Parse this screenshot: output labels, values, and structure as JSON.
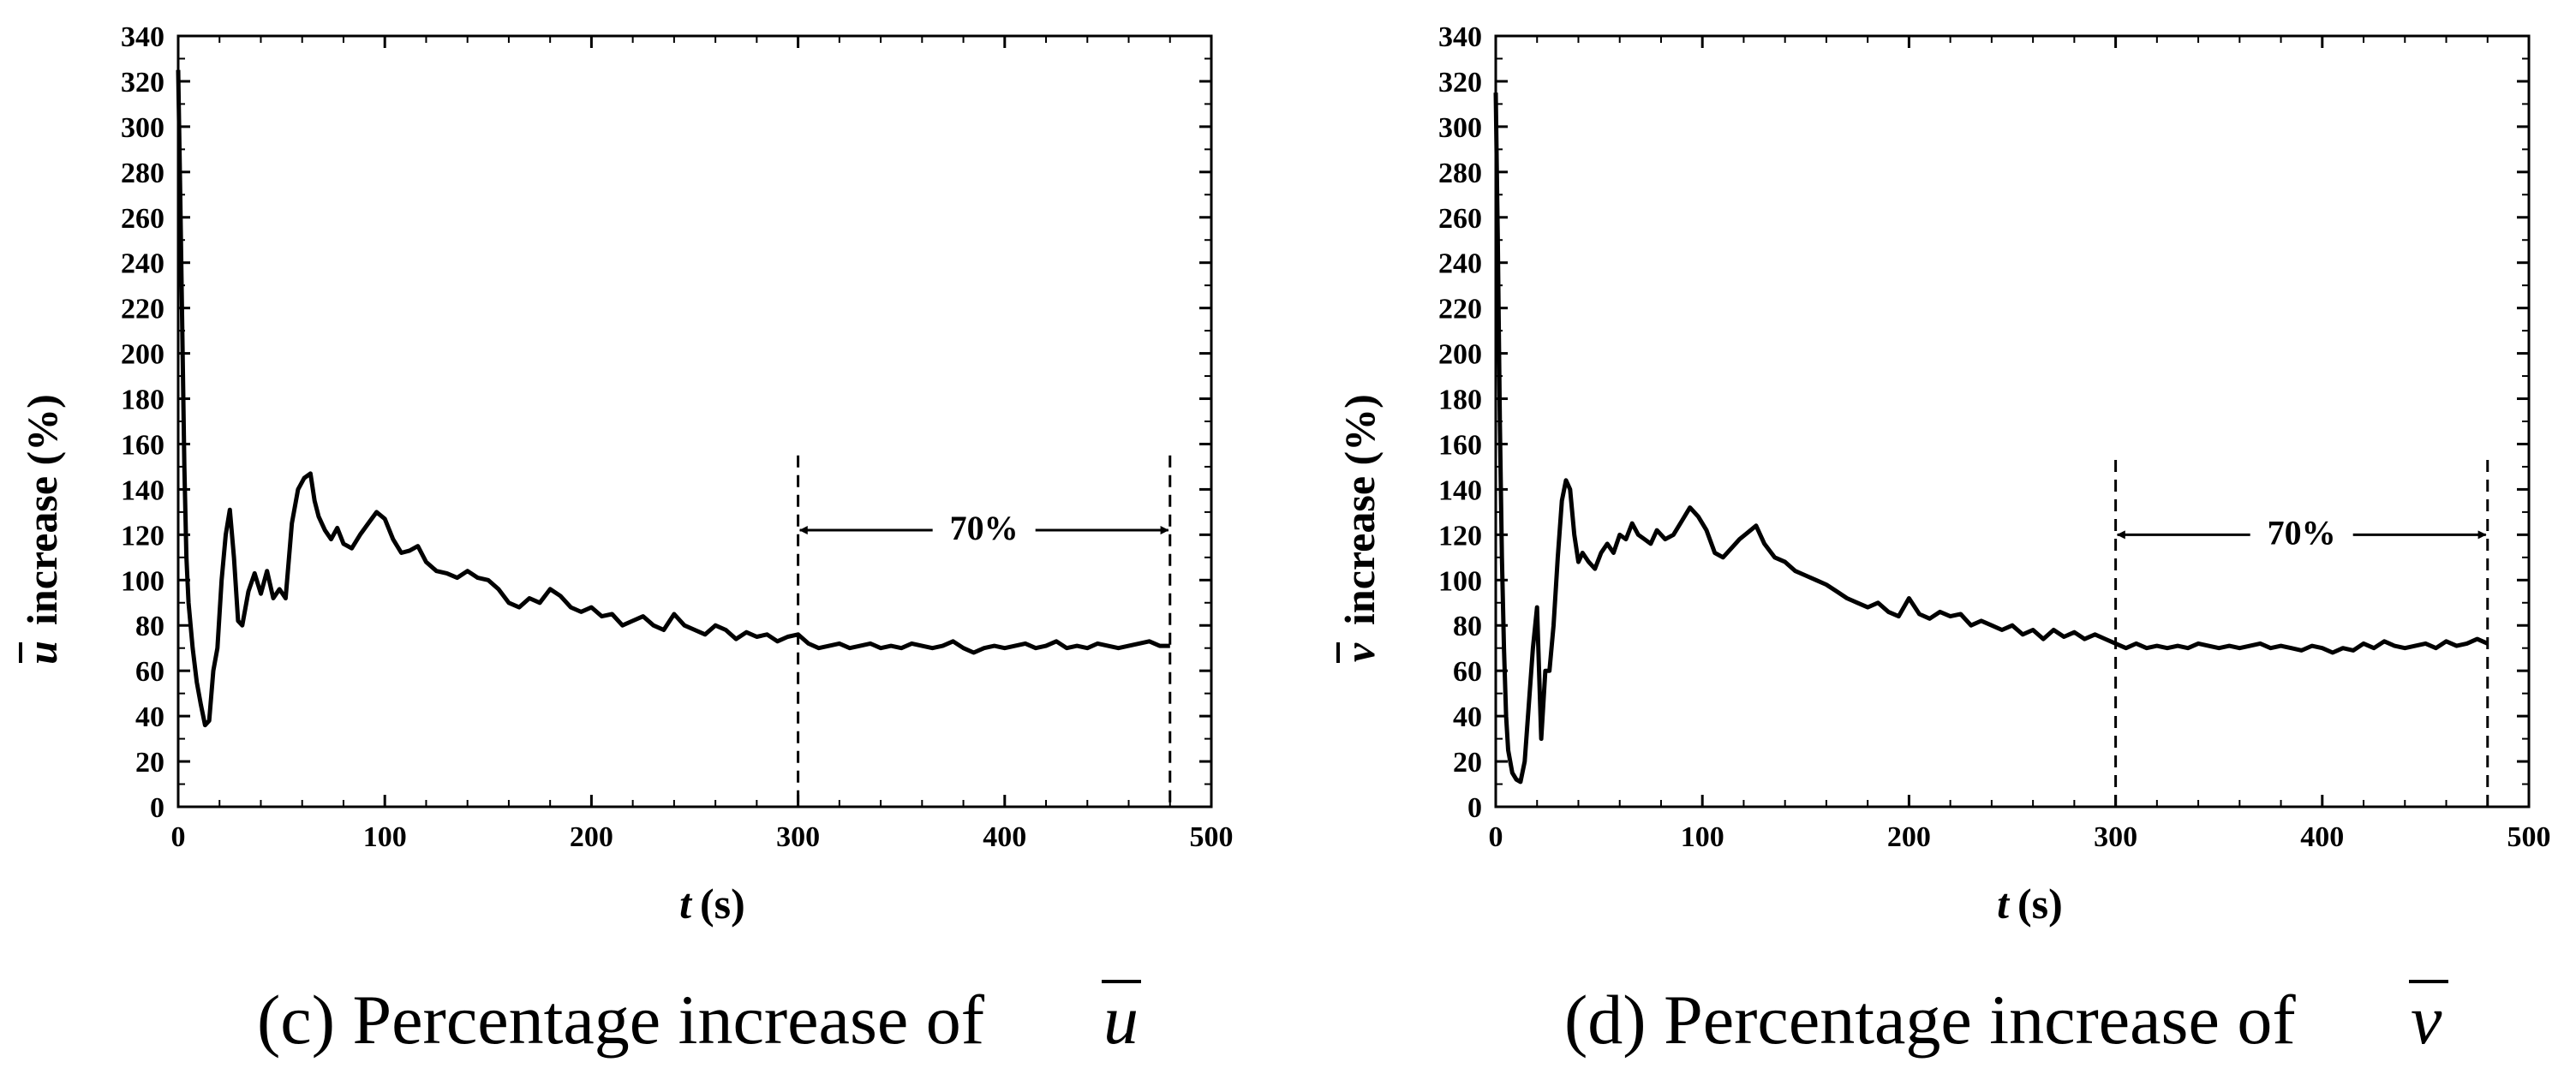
{
  "chart_data": [
    {
      "type": "line",
      "panel": "c",
      "caption_prefix": "(c) Percentage increase of",
      "caption_symbol": "u",
      "symbol": "u",
      "ylabel_rest": "increase (%)",
      "xlabel_var": "t",
      "xlabel_unit": "(s)",
      "xlim": [
        0,
        500
      ],
      "ylim": [
        0,
        340
      ],
      "xticks": [
        0,
        100,
        200,
        300,
        400,
        500
      ],
      "yticks": [
        0,
        20,
        40,
        60,
        80,
        100,
        120,
        140,
        160,
        180,
        200,
        220,
        240,
        260,
        280,
        300,
        320,
        340
      ],
      "grid": false,
      "markers": {
        "x": [
          300,
          480
        ],
        "y_top": 155
      },
      "annotation": {
        "text": "70%",
        "y": 122
      },
      "series": [
        {
          "name": "u increase",
          "x": [
            0,
            1,
            2,
            3,
            4,
            5,
            7,
            9,
            11,
            13,
            15,
            17,
            19,
            21,
            23,
            25,
            27,
            29,
            31,
            34,
            37,
            40,
            43,
            46,
            49,
            52,
            55,
            58,
            61,
            64,
            66,
            68,
            71,
            74,
            77,
            80,
            84,
            88,
            92,
            96,
            100,
            104,
            108,
            112,
            116,
            120,
            125,
            130,
            135,
            140,
            145,
            150,
            155,
            160,
            165,
            170,
            175,
            180,
            185,
            190,
            195,
            200,
            205,
            210,
            215,
            220,
            225,
            230,
            235,
            240,
            245,
            250,
            255,
            260,
            265,
            270,
            275,
            280,
            285,
            290,
            295,
            300,
            305,
            310,
            315,
            320,
            325,
            330,
            335,
            340,
            345,
            350,
            355,
            360,
            365,
            370,
            375,
            380,
            385,
            390,
            395,
            400,
            405,
            410,
            415,
            420,
            425,
            430,
            435,
            440,
            445,
            450,
            455,
            460,
            465,
            470,
            475,
            480
          ],
          "y": [
            325,
            270,
            210,
            150,
            110,
            90,
            70,
            55,
            45,
            36,
            38,
            60,
            70,
            100,
            120,
            131,
            110,
            82,
            80,
            95,
            103,
            94,
            104,
            92,
            96,
            92,
            125,
            140,
            145,
            147,
            135,
            128,
            122,
            118,
            123,
            116,
            114,
            120,
            125,
            130,
            127,
            118,
            112,
            113,
            115,
            108,
            104,
            103,
            101,
            104,
            101,
            100,
            96,
            90,
            88,
            92,
            90,
            96,
            93,
            88,
            86,
            88,
            84,
            85,
            80,
            82,
            84,
            80,
            78,
            85,
            80,
            78,
            76,
            80,
            78,
            74,
            77,
            75,
            76,
            73,
            75,
            76,
            72,
            70,
            71,
            72,
            70,
            71,
            72,
            70,
            71,
            70,
            72,
            71,
            70,
            71,
            73,
            70,
            68,
            70,
            71,
            70,
            71,
            72,
            70,
            71,
            73,
            70,
            71,
            70,
            72,
            71,
            70,
            71,
            72,
            73,
            71,
            71
          ]
        }
      ]
    },
    {
      "type": "line",
      "panel": "d",
      "caption_prefix": "(d) Percentage increase of",
      "caption_symbol": "v",
      "symbol": "v",
      "ylabel_rest": "increase (%)",
      "xlabel_var": "t",
      "xlabel_unit": "(s)",
      "xlim": [
        0,
        500
      ],
      "ylim": [
        0,
        340
      ],
      "xticks": [
        0,
        100,
        200,
        300,
        400,
        500
      ],
      "yticks": [
        0,
        20,
        40,
        60,
        80,
        100,
        120,
        140,
        160,
        180,
        200,
        220,
        240,
        260,
        280,
        300,
        320,
        340
      ],
      "grid": false,
      "markers": {
        "x": [
          300,
          480
        ],
        "y_top": 153
      },
      "annotation": {
        "text": "70%",
        "y": 120
      },
      "series": [
        {
          "name": "v increase",
          "x": [
            0,
            1,
            2,
            3,
            4,
            5,
            6,
            8,
            10,
            12,
            14,
            16,
            18,
            20,
            22,
            24,
            26,
            28,
            30,
            32,
            34,
            36,
            38,
            40,
            42,
            45,
            48,
            51,
            54,
            57,
            60,
            63,
            66,
            69,
            72,
            75,
            78,
            82,
            86,
            90,
            94,
            98,
            102,
            106,
            110,
            114,
            118,
            122,
            126,
            130,
            135,
            140,
            145,
            150,
            155,
            160,
            165,
            170,
            175,
            180,
            185,
            190,
            195,
            200,
            205,
            210,
            215,
            220,
            225,
            230,
            235,
            240,
            245,
            250,
            255,
            260,
            265,
            270,
            275,
            280,
            285,
            290,
            295,
            300,
            305,
            310,
            315,
            320,
            325,
            330,
            335,
            340,
            345,
            350,
            355,
            360,
            365,
            370,
            375,
            380,
            385,
            390,
            395,
            400,
            405,
            410,
            415,
            420,
            425,
            430,
            435,
            440,
            445,
            450,
            455,
            460,
            465,
            470,
            475,
            480
          ],
          "y": [
            315,
            250,
            170,
            110,
            70,
            40,
            25,
            15,
            12,
            11,
            20,
            45,
            70,
            88,
            30,
            60,
            60,
            80,
            110,
            135,
            144,
            140,
            120,
            108,
            112,
            108,
            105,
            112,
            116,
            112,
            120,
            118,
            125,
            120,
            118,
            116,
            122,
            118,
            120,
            126,
            132,
            128,
            122,
            112,
            110,
            114,
            118,
            121,
            124,
            116,
            110,
            108,
            104,
            102,
            100,
            98,
            95,
            92,
            90,
            88,
            90,
            86,
            84,
            92,
            85,
            83,
            86,
            84,
            85,
            80,
            82,
            80,
            78,
            80,
            76,
            78,
            74,
            78,
            75,
            77,
            74,
            76,
            74,
            72,
            70,
            72,
            70,
            71,
            70,
            71,
            70,
            72,
            71,
            70,
            71,
            70,
            71,
            72,
            70,
            71,
            70,
            69,
            71,
            70,
            68,
            70,
            69,
            72,
            70,
            73,
            71,
            70,
            71,
            72,
            70,
            73,
            71,
            72,
            74,
            72
          ]
        }
      ]
    }
  ]
}
